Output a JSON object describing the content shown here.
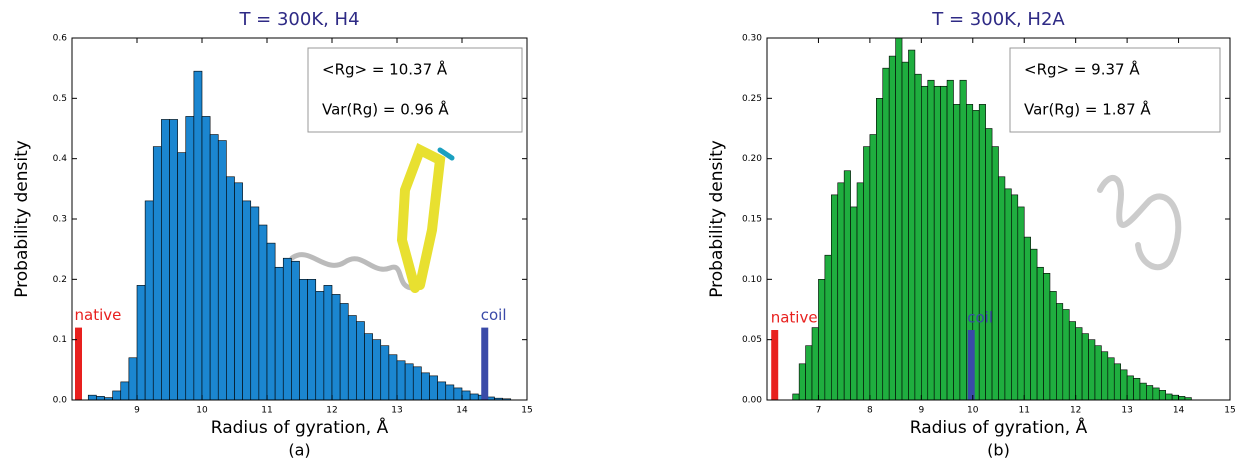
{
  "chart_data": [
    {
      "type": "histogram",
      "title": "T = 300K, H4",
      "xlabel": "Radius of gyration, Å",
      "ylabel": "Probability density",
      "caption": "(a)",
      "color": "#1b86d0",
      "bins": [
        8.25,
        8.375,
        8.5,
        8.625,
        8.75,
        8.875,
        9,
        9.125,
        9.25,
        9.375,
        9.5,
        9.625,
        9.75,
        9.875,
        10,
        10.125,
        10.25,
        10.375,
        10.5,
        10.625,
        10.75,
        10.875,
        11,
        11.125,
        11.25,
        11.375,
        11.5,
        11.625,
        11.75,
        11.875,
        12,
        12.125,
        12.25,
        12.375,
        12.5,
        12.625,
        12.75,
        12.875,
        13,
        13.125,
        13.25,
        13.375,
        13.5,
        13.625,
        13.75,
        13.875,
        14,
        14.125,
        14.25,
        14.375,
        14.5,
        14.625,
        14.75
      ],
      "values": [
        0.008,
        0.006,
        0.004,
        0.015,
        0.03,
        0.07,
        0.19,
        0.33,
        0.42,
        0.465,
        0.465,
        0.41,
        0.47,
        0.545,
        0.47,
        0.44,
        0.43,
        0.37,
        0.36,
        0.33,
        0.32,
        0.29,
        0.26,
        0.22,
        0.235,
        0.23,
        0.2,
        0.2,
        0.18,
        0.19,
        0.175,
        0.16,
        0.14,
        0.13,
        0.11,
        0.1,
        0.09,
        0.075,
        0.065,
        0.06,
        0.055,
        0.045,
        0.04,
        0.03,
        0.025,
        0.02,
        0.015,
        0.01,
        0.008,
        0.005,
        0.003,
        0.002
      ],
      "xlim": [
        8,
        15
      ],
      "xticks": [
        9,
        10,
        11,
        12,
        13,
        14,
        15
      ],
      "ylim": [
        0,
        0.6
      ],
      "yticks": [
        {
          "value": 0,
          "label": "0.0"
        },
        0.1,
        0.2,
        0.3,
        0.4,
        0.5,
        0.6
      ],
      "markers": [
        {
          "label": "native",
          "x": 8.1,
          "height": 0.12,
          "color": "#e8201e"
        },
        {
          "label": "coil",
          "x": 14.35,
          "height": 0.12,
          "color": "#3a4aa8"
        }
      ],
      "stats": [
        "<Rg> = 10.37 Å",
        "Var(Rg) = 0.96 Å"
      ]
    },
    {
      "type": "histogram",
      "title": "T = 300K, H2A",
      "xlabel": "Radius of gyration, Å",
      "ylabel": "Probability density",
      "caption": "(b)",
      "color": "#1fae3f",
      "bins": [
        6.5,
        6.625,
        6.75,
        6.875,
        7,
        7.125,
        7.25,
        7.375,
        7.5,
        7.625,
        7.75,
        7.875,
        8,
        8.125,
        8.25,
        8.375,
        8.5,
        8.625,
        8.75,
        8.875,
        9,
        9.125,
        9.25,
        9.375,
        9.5,
        9.625,
        9.75,
        9.875,
        10,
        10.125,
        10.25,
        10.375,
        10.5,
        10.625,
        10.75,
        10.875,
        11,
        11.125,
        11.25,
        11.375,
        11.5,
        11.625,
        11.75,
        11.875,
        12,
        12.125,
        12.25,
        12.375,
        12.5,
        12.625,
        12.75,
        12.875,
        13,
        13.125,
        13.25,
        13.375,
        13.5,
        13.625,
        13.75,
        13.875,
        14,
        14.125,
        14.25
      ],
      "values": [
        0.005,
        0.03,
        0.045,
        0.06,
        0.1,
        0.12,
        0.17,
        0.18,
        0.19,
        0.16,
        0.18,
        0.21,
        0.22,
        0.25,
        0.275,
        0.285,
        0.3,
        0.28,
        0.29,
        0.27,
        0.26,
        0.265,
        0.26,
        0.26,
        0.265,
        0.245,
        0.265,
        0.245,
        0.24,
        0.245,
        0.225,
        0.21,
        0.185,
        0.175,
        0.17,
        0.16,
        0.135,
        0.125,
        0.11,
        0.105,
        0.09,
        0.08,
        0.075,
        0.065,
        0.06,
        0.055,
        0.05,
        0.045,
        0.04,
        0.035,
        0.03,
        0.025,
        0.02,
        0.018,
        0.014,
        0.012,
        0.01,
        0.008,
        0.005,
        0.004,
        0.003,
        0.002
      ],
      "xlim": [
        6,
        15
      ],
      "xticks": [
        7,
        8,
        9,
        10,
        11,
        12,
        13,
        14,
        15
      ],
      "ylim": [
        0,
        0.3
      ],
      "yticks": [
        {
          "value": 0,
          "label": "0.00"
        },
        {
          "value": 0.05,
          "label": "0.05"
        },
        {
          "value": 0.1,
          "label": "0.10"
        },
        {
          "value": 0.15,
          "label": "0.15"
        },
        {
          "value": 0.2,
          "label": "0.20"
        },
        {
          "value": 0.25,
          "label": "0.25"
        },
        {
          "value": 0.3,
          "label": "0.30"
        }
      ],
      "markers": [
        {
          "label": "native",
          "x": 6.15,
          "height": 0.058,
          "color": "#e8201e"
        },
        {
          "label": "coil",
          "x": 9.97,
          "height": 0.058,
          "color": "#3a4aa8"
        }
      ],
      "stats": [
        "<Rg> = 9.37 Å",
        "Var(Rg) = 1.87 Å"
      ]
    }
  ]
}
